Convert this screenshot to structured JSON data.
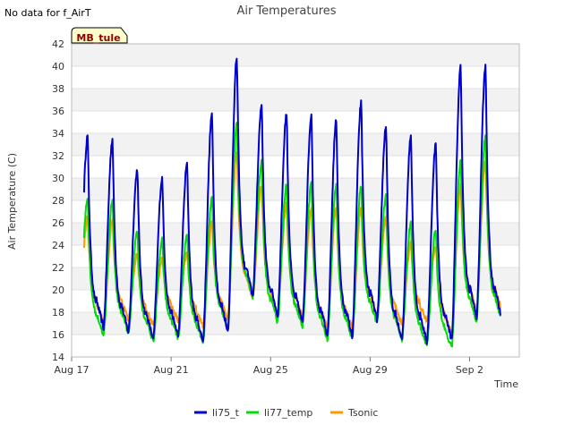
{
  "nodata_note": "No data for f_AirT",
  "site_badge": "MB_tule",
  "chart_data": {
    "type": "line",
    "title": "Air Temperatures",
    "xlabel": "Time",
    "ylabel": "Air Temperature (C)",
    "ylim": [
      14,
      42
    ],
    "xlim": [
      0,
      18
    ],
    "x_unit": "days since Aug 17",
    "y_ticks": [
      14,
      16,
      18,
      20,
      22,
      24,
      26,
      28,
      30,
      32,
      34,
      36,
      38,
      40,
      42
    ],
    "x_ticks": [
      {
        "value": 0,
        "label": "Aug 17"
      },
      {
        "value": 4,
        "label": "Aug 21"
      },
      {
        "value": 8,
        "label": "Aug 25"
      },
      {
        "value": 12,
        "label": "Aug 29"
      },
      {
        "value": 16,
        "label": "Sep 2"
      }
    ],
    "grid": "horizontal bands",
    "legend_position": "bottom-center",
    "series": [
      {
        "name": "li75_t",
        "color": "#0000cc",
        "daily_max": [
          33.8,
          33.5,
          30.8,
          30.0,
          31.3,
          35.8,
          40.8,
          36.6,
          35.8,
          35.7,
          35.2,
          36.8,
          34.7,
          33.8,
          33.1,
          40.0,
          40.0
        ],
        "daily_min": [
          17.2,
          16.6,
          16.2,
          15.6,
          15.9,
          15.4,
          16.3,
          19.4,
          17.7,
          17.0,
          15.8,
          15.8,
          17.3,
          15.4,
          15.3,
          15.5,
          17.5
        ]
      },
      {
        "name": "li77_temp",
        "color": "#00dd00",
        "daily_max": [
          28.2,
          28.0,
          25.3,
          24.5,
          24.9,
          28.3,
          35.1,
          31.5,
          29.4,
          29.6,
          29.4,
          29.4,
          28.5,
          26.0,
          25.4,
          31.5,
          33.8
        ],
        "daily_min": [
          16.8,
          15.9,
          16.1,
          15.4,
          15.7,
          15.3,
          16.4,
          19.3,
          17.1,
          16.7,
          15.5,
          15.6,
          17.0,
          15.5,
          15.0,
          14.8,
          17.2
        ]
      },
      {
        "name": "Tsonic",
        "color": "#ff9900",
        "daily_max": [
          26.5,
          26.2,
          23.2,
          22.8,
          23.3,
          26.1,
          32.5,
          29.4,
          27.7,
          27.2,
          27.5,
          27.3,
          26.6,
          24.1,
          24.0,
          29.4,
          31.5
        ],
        "daily_min": [
          17.9,
          17.1,
          17.3,
          16.8,
          17.2,
          16.7,
          17.4,
          19.3,
          17.9,
          17.6,
          16.5,
          16.5,
          17.7,
          16.9,
          17.2,
          16.1,
          18.2
        ]
      }
    ]
  }
}
